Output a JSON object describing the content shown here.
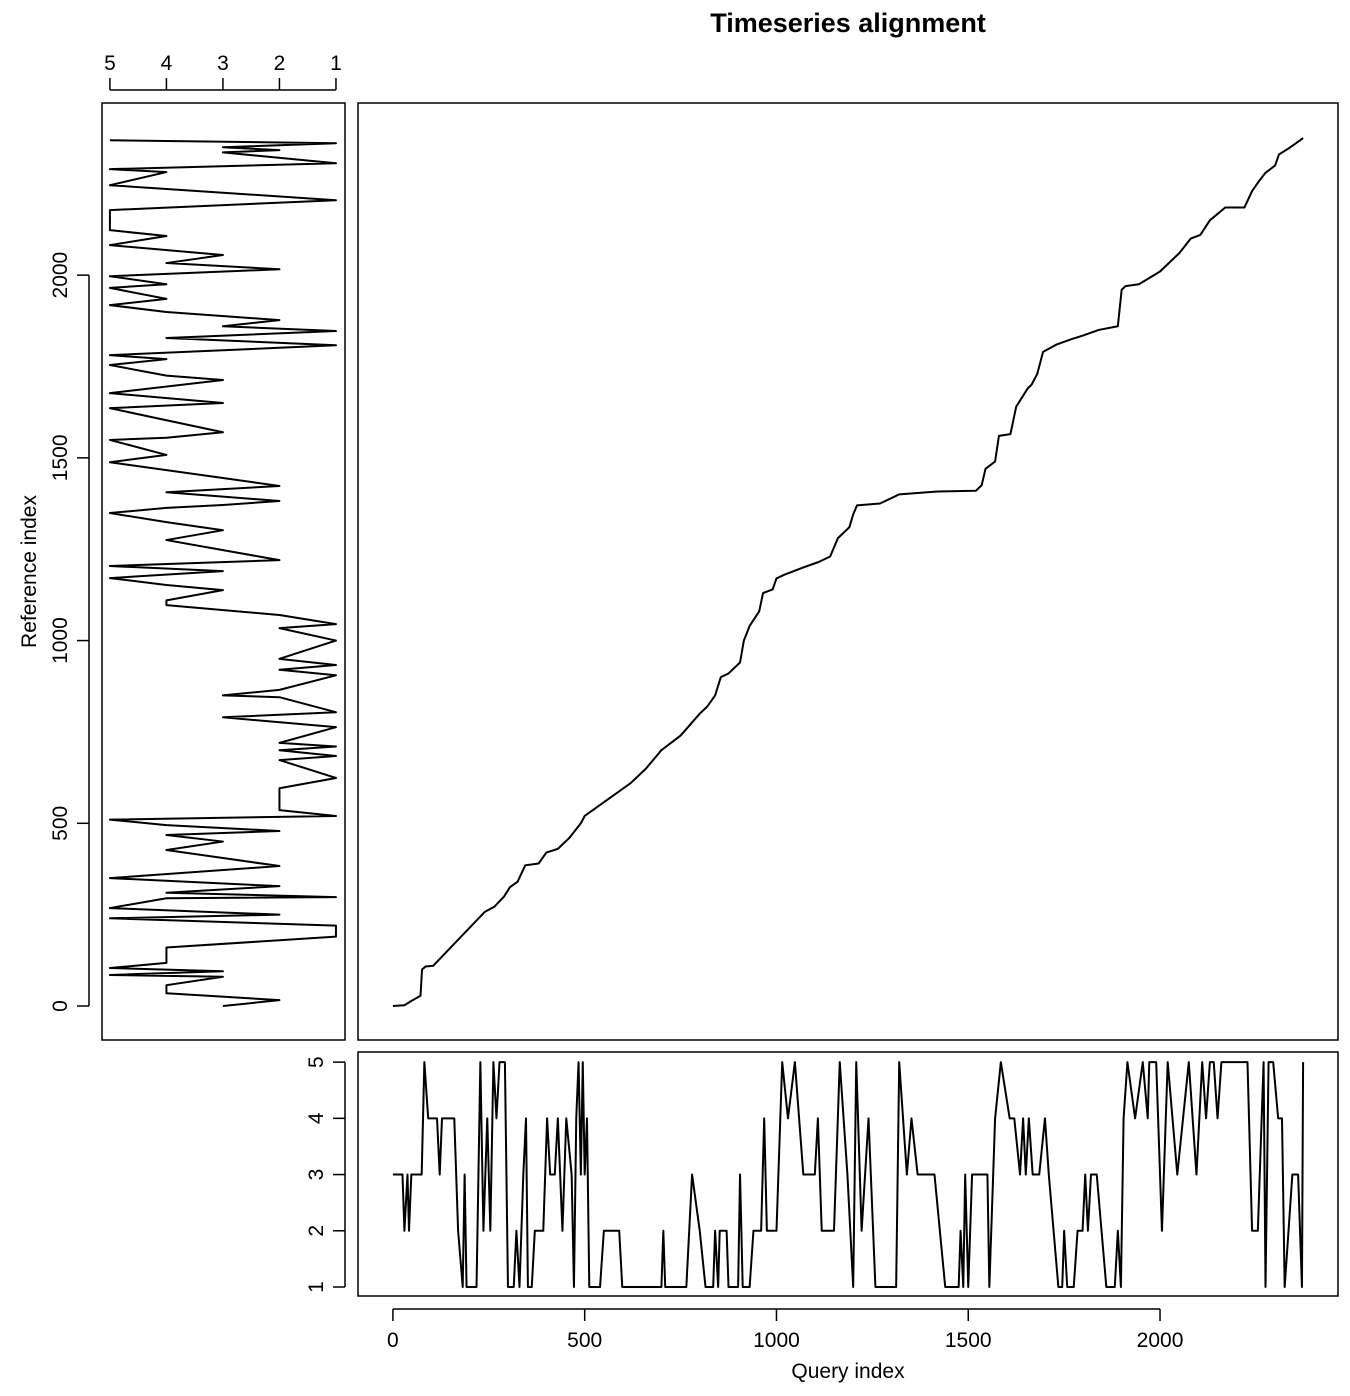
{
  "chart_data": [
    {
      "type": "line",
      "title": "Timeseries alignment",
      "x": [
        0,
        30,
        50,
        72,
        76,
        85,
        105,
        240,
        265,
        290,
        305,
        325,
        345,
        380,
        400,
        430,
        460,
        490,
        500,
        620,
        660,
        700,
        750,
        800,
        820,
        840,
        855,
        875,
        905,
        915,
        930,
        955,
        965,
        990,
        1000,
        1020,
        1070,
        1110,
        1140,
        1160,
        1190,
        1200,
        1210,
        1270,
        1320,
        1420,
        1520,
        1535,
        1545,
        1570,
        1580,
        1610,
        1625,
        1655,
        1665,
        1680,
        1695,
        1730,
        1770,
        1800,
        1840,
        1890,
        1900,
        1910,
        1945,
        2000,
        2050,
        2080,
        2105,
        2130,
        2170,
        2220,
        2240,
        2260,
        2275,
        2300,
        2310,
        2340,
        2373
      ],
      "values": [
        0,
        2,
        15,
        28,
        100,
        108,
        110,
        258,
        272,
        300,
        325,
        340,
        385,
        390,
        420,
        430,
        460,
        500,
        520,
        610,
        650,
        700,
        740,
        800,
        820,
        850,
        900,
        910,
        940,
        1000,
        1040,
        1080,
        1130,
        1140,
        1170,
        1180,
        1200,
        1215,
        1230,
        1280,
        1310,
        1345,
        1370,
        1375,
        1400,
        1408,
        1410,
        1425,
        1470,
        1490,
        1560,
        1565,
        1640,
        1690,
        1700,
        1730,
        1790,
        1810,
        1825,
        1835,
        1850,
        1860,
        1960,
        1970,
        1975,
        2010,
        2060,
        2100,
        2110,
        2150,
        2185,
        2185,
        2230,
        2260,
        2280,
        2300,
        2330,
        2350,
        2375
      ],
      "xlim": [
        -91,
        2464
      ],
      "ylim": [
        -93,
        2471
      ],
      "color": "#000000"
    },
    {
      "type": "line",
      "orientation": "vertical",
      "y_label": "Reference index",
      "y": [
        0,
        16,
        35,
        57,
        80,
        85,
        95,
        104,
        118,
        160,
        190,
        220,
        240,
        250,
        268,
        295,
        298,
        310,
        328,
        350,
        383,
        405,
        427,
        450,
        468,
        479,
        495,
        510,
        520,
        536,
        596,
        624,
        673,
        684,
        700,
        710,
        720,
        763,
        790,
        804,
        845,
        850,
        865,
        905,
        920,
        933,
        950,
        1000,
        1034,
        1045,
        1070,
        1097,
        1110,
        1138,
        1152,
        1171,
        1190,
        1204,
        1220,
        1275,
        1302,
        1324,
        1349,
        1363,
        1371,
        1382,
        1406,
        1423,
        1445,
        1488,
        1508,
        1549,
        1555,
        1570,
        1603,
        1636,
        1650,
        1677,
        1713,
        1725,
        1754,
        1770,
        1781,
        1808,
        1828,
        1847,
        1860,
        1877,
        1899,
        1918,
        1935,
        1965,
        1975,
        1997,
        2016,
        2033,
        2055,
        2082,
        2107,
        2123,
        2178,
        2205,
        2246,
        2282,
        2290,
        2306,
        2336,
        2342,
        2350,
        2361,
        2369
      ],
      "values": [
        3,
        2,
        4,
        4,
        3,
        5,
        3,
        5,
        4,
        4,
        1,
        1,
        5,
        2,
        5,
        4,
        1,
        4,
        2,
        5,
        2,
        3,
        4,
        3,
        4,
        2,
        4,
        5,
        1,
        2,
        2,
        1,
        2,
        1,
        2,
        1,
        2,
        1,
        3,
        1,
        2,
        3,
        2,
        1,
        2,
        1,
        2,
        1,
        2,
        1,
        2,
        4,
        4,
        3,
        4,
        5,
        3,
        5,
        2,
        4,
        3,
        4,
        5,
        4,
        3,
        2,
        4,
        2,
        3,
        5,
        4,
        5,
        4,
        3,
        4,
        5,
        3,
        5,
        3,
        4,
        5,
        4,
        5,
        1,
        4,
        1,
        3,
        2,
        4,
        5,
        4,
        5,
        4,
        5,
        2,
        4,
        3,
        5,
        4,
        5,
        5,
        1,
        5,
        4,
        5,
        1,
        3,
        2,
        3,
        1,
        5
      ],
      "xlim": [
        5.14,
        0.84
      ],
      "xticks": [
        5,
        4,
        3,
        2,
        1
      ],
      "ylim": [
        -93,
        2471
      ],
      "yticks": [
        0,
        500,
        1000,
        1500,
        2000
      ],
      "color": "#000000"
    },
    {
      "type": "line",
      "x_label": "Query index",
      "x": [
        0,
        25,
        30,
        38,
        42,
        48,
        75,
        82,
        92,
        115,
        122,
        128,
        160,
        170,
        182,
        187,
        192,
        218,
        228,
        236,
        246,
        254,
        262,
        270,
        278,
        292,
        300,
        315,
        322,
        330,
        340,
        347,
        352,
        362,
        370,
        392,
        402,
        410,
        422,
        430,
        442,
        452,
        466,
        472,
        478,
        484,
        490,
        495,
        500,
        506,
        512,
        540,
        550,
        590,
        598,
        700,
        705,
        710,
        765,
        780,
        800,
        815,
        835,
        840,
        848,
        852,
        870,
        875,
        900,
        905,
        912,
        930,
        940,
        960,
        968,
        975,
        1000,
        1015,
        1030,
        1048,
        1070,
        1100,
        1108,
        1118,
        1150,
        1165,
        1185,
        1200,
        1208,
        1222,
        1240,
        1258,
        1312,
        1320,
        1340,
        1352,
        1368,
        1412,
        1440,
        1475,
        1480,
        1487,
        1492,
        1500,
        1510,
        1550,
        1555,
        1570,
        1585,
        1608,
        1620,
        1635,
        1643,
        1650,
        1658,
        1668,
        1685,
        1700,
        1710,
        1735,
        1745,
        1750,
        1758,
        1775,
        1785,
        1798,
        1805,
        1812,
        1820,
        1835,
        1860,
        1882,
        1890,
        1898,
        1905,
        1915,
        1935,
        1955,
        1968,
        1972,
        1990,
        2005,
        2020,
        2045,
        2060,
        2075,
        2095,
        2110,
        2120,
        2130,
        2140,
        2150,
        2160,
        2228,
        2240,
        2255,
        2270,
        2275,
        2283,
        2295,
        2308,
        2318,
        2325,
        2345,
        2360,
        2370,
        2373
      ],
      "values": [
        3,
        3,
        2,
        3,
        2,
        3,
        3,
        5,
        4,
        4,
        3,
        4,
        4,
        2,
        1,
        3,
        1,
        1,
        5,
        2,
        4,
        2,
        5,
        4,
        5,
        5,
        1,
        1,
        2,
        1,
        3,
        4,
        1,
        1,
        2,
        2,
        4,
        3,
        3,
        4,
        2,
        4,
        3,
        1,
        4,
        5,
        3,
        5,
        3,
        4,
        1,
        1,
        2,
        2,
        1,
        1,
        2,
        1,
        1,
        3,
        2,
        1,
        1,
        2,
        1,
        2,
        2,
        1,
        1,
        3,
        1,
        1,
        2,
        2,
        4,
        2,
        2,
        5,
        4,
        5,
        3,
        3,
        4,
        2,
        2,
        5,
        3,
        1,
        5,
        2,
        4,
        1,
        1,
        5,
        3,
        4,
        3,
        3,
        1,
        1,
        2,
        1,
        3,
        1,
        3,
        3,
        1,
        4,
        5,
        4,
        4,
        3,
        4,
        3,
        4,
        3,
        3,
        4,
        3,
        1,
        1,
        2,
        1,
        1,
        2,
        2,
        3,
        2,
        3,
        3,
        1,
        1,
        2,
        1,
        4,
        5,
        4,
        5,
        4,
        5,
        5,
        2,
        5,
        3,
        4,
        5,
        3,
        5,
        4,
        5,
        5,
        4,
        5,
        5,
        2,
        2,
        5,
        1,
        5,
        5,
        4,
        4,
        1,
        3,
        3,
        1,
        5
      ],
      "xlim": [
        -91,
        2464
      ],
      "xticks": [
        0,
        500,
        1000,
        1500,
        2000
      ],
      "ylim": [
        0.84,
        5.18
      ],
      "yticks": [
        1,
        2,
        3,
        4,
        5
      ],
      "color": "#000000"
    }
  ]
}
